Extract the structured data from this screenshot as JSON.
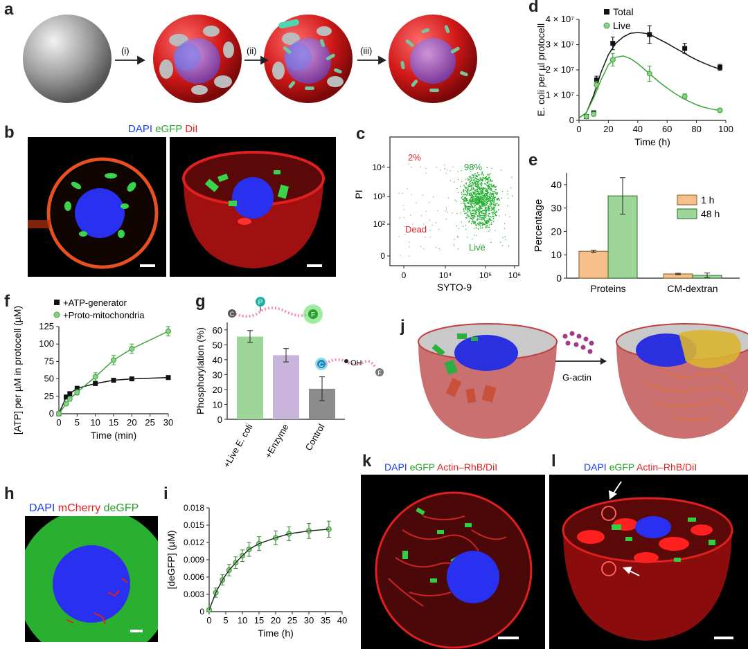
{
  "panels": {
    "a": "a",
    "b": "b",
    "c": "c",
    "d": "d",
    "e": "e",
    "f": "f",
    "g": "g",
    "h": "h",
    "i": "i",
    "j": "j",
    "k": "k",
    "l": "l"
  },
  "panel_a": {
    "steps": [
      "(i)",
      "(ii)",
      "(iii)"
    ]
  },
  "panel_b": {
    "stain_dapi": "DAPI",
    "stain_egfp": "eGFP",
    "stain_dil": "DiI"
  },
  "panel_h": {
    "stain_dapi": "DAPI",
    "stain_mcherry": "mCherry",
    "stain_degfp": "deGFP"
  },
  "panel_j": {
    "arrow_label": "G-actin"
  },
  "panel_k": {
    "stain_dapi": "DAPI",
    "stain_egfp": "eGFP",
    "stain_actin": "Actin–RhB/DiI"
  },
  "panel_l": {
    "stain_dapi": "DAPI",
    "stain_egfp": "eGFP",
    "stain_actin": "Actin–RhB/DiI"
  },
  "colors": {
    "black": "#111111",
    "green": "#3aa63a",
    "red": "#e02020",
    "blue": "#1a3cff",
    "orange": "#f5c08c",
    "lightgreen": "#9ed69a",
    "lavender": "#c9b4dc",
    "gray": "#8c8c8c",
    "lightg": "#8fcd8a"
  },
  "chart_data": [
    {
      "id": "d",
      "type": "line",
      "ylabel": "E. coli per µl protocell",
      "xlabel": "Time (h)",
      "xticks": [
        "0",
        "20",
        "40",
        "60",
        "80",
        "100"
      ],
      "yticks": [
        "0",
        "1 × 10⁷",
        "2 × 10⁷",
        "3 × 10⁷",
        "4 × 10⁷"
      ],
      "xlim": [
        0,
        100
      ],
      "ylim": [
        0,
        4.0
      ],
      "series": [
        {
          "name": "Total",
          "x": [
            5,
            10,
            12,
            23,
            48,
            72,
            96
          ],
          "y": [
            0.15,
            0.3,
            1.6,
            3.05,
            3.4,
            2.85,
            2.1
          ],
          "err": [
            0.05,
            0.08,
            0.15,
            0.25,
            0.35,
            0.2,
            0.12
          ]
        },
        {
          "name": "Live",
          "x": [
            5,
            10,
            12,
            23,
            48,
            72,
            96
          ],
          "y": [
            0.15,
            0.25,
            1.4,
            2.4,
            1.85,
            0.95,
            0.4
          ],
          "err": [
            0.05,
            0.08,
            0.15,
            0.25,
            0.3,
            0.1,
            0.08
          ]
        }
      ],
      "fits": [
        {
          "name": "Total",
          "x": [
            0,
            5,
            10,
            15,
            20,
            25,
            30,
            35,
            40,
            45,
            50,
            55,
            60,
            65,
            70,
            75,
            80,
            85,
            90,
            95
          ],
          "y": [
            0.1,
            0.3,
            1.0,
            1.9,
            2.6,
            3.05,
            3.3,
            3.45,
            3.48,
            3.45,
            3.35,
            3.2,
            3.05,
            2.88,
            2.72,
            2.55,
            2.4,
            2.27,
            2.15,
            2.05
          ]
        },
        {
          "name": "Live",
          "x": [
            0,
            5,
            10,
            15,
            20,
            25,
            30,
            35,
            40,
            45,
            50,
            55,
            60,
            65,
            70,
            75,
            80,
            85,
            90,
            95
          ],
          "y": [
            0.1,
            0.3,
            0.9,
            1.6,
            2.2,
            2.5,
            2.55,
            2.45,
            2.25,
            2.0,
            1.75,
            1.5,
            1.28,
            1.08,
            0.9,
            0.75,
            0.62,
            0.52,
            0.45,
            0.4
          ]
        }
      ]
    },
    {
      "id": "c",
      "type": "scatter",
      "ylabel": "PI",
      "xlabel": "SYTO-9",
      "xticks": [
        "0",
        "10⁴",
        "10⁵",
        "10⁶"
      ],
      "yticks": [
        "0",
        "10²",
        "10³",
        "10⁴"
      ],
      "annotations": {
        "dead_pct": "2%",
        "live_pct": "98%",
        "dead": "Dead",
        "live": "Live"
      }
    },
    {
      "id": "e",
      "type": "bar",
      "ylabel": "Percentage",
      "categories": [
        "Proteins",
        "CM-dextran"
      ],
      "yticks": [
        "0",
        "10",
        "20",
        "30",
        "40"
      ],
      "ylim": [
        0,
        45
      ],
      "series": [
        {
          "name": "1 h",
          "values": [
            11.5,
            1.8
          ],
          "err": [
            0.5,
            0.3
          ]
        },
        {
          "name": "48 h",
          "values": [
            35.2,
            1.2
          ],
          "err": [
            7.8,
            1.0
          ]
        }
      ]
    },
    {
      "id": "f",
      "type": "line",
      "ylabel": "[ATP] per µM in protocell (µM)",
      "xlabel": "Time (min)",
      "xticks": [
        "0",
        "5",
        "10",
        "15",
        "20",
        "25",
        "30"
      ],
      "yticks": [
        "0",
        "25",
        "50",
        "75",
        "100",
        "125"
      ],
      "xlim": [
        0,
        30
      ],
      "ylim": [
        0,
        130
      ],
      "series": [
        {
          "name": "+ATP-generator",
          "x": [
            0,
            2,
            3,
            5,
            10,
            15,
            20,
            30
          ],
          "y": [
            0,
            25,
            30,
            38,
            45,
            50,
            52,
            54
          ],
          "err": [
            1,
            2,
            2,
            2,
            2,
            2,
            2,
            2
          ]
        },
        {
          "name": "+Proto-mitochondria",
          "x": [
            0,
            2,
            3,
            5,
            10,
            15,
            20,
            30
          ],
          "y": [
            0,
            15,
            22,
            32,
            55,
            80,
            97,
            123
          ],
          "err": [
            1,
            3,
            3,
            4,
            6,
            7,
            7,
            7
          ]
        }
      ]
    },
    {
      "id": "g",
      "type": "bar",
      "ylabel": "Phosphorylation (%)",
      "categories": [
        "+Live E. coli",
        "+Enzyme",
        "Control"
      ],
      "yticks": [
        "0",
        "10",
        "20",
        "30",
        "40",
        "50",
        "60"
      ],
      "ylim": [
        0,
        65
      ],
      "values": [
        55.5,
        43,
        20.5
      ],
      "err": [
        4,
        4.5,
        8
      ],
      "colors": [
        "#9ed69a",
        "#c9b4dc",
        "#8c8c8c"
      ],
      "glyphs": {
        "c": "C",
        "p": "P",
        "f": "F",
        "oh": "OH"
      }
    },
    {
      "id": "i",
      "type": "line",
      "ylabel": "[deGFP] (µM)",
      "xlabel": "Time (h)",
      "xticks": [
        "0",
        "5",
        "10",
        "15",
        "20",
        "25",
        "30",
        "35",
        "40"
      ],
      "yticks": [
        "0",
        "0.003",
        "0.006",
        "0.009",
        "0.012",
        "0.015",
        "0.018"
      ],
      "xlim": [
        0,
        40
      ],
      "ylim": [
        0,
        0.018
      ],
      "series": [
        {
          "name": "deGFP",
          "x": [
            0,
            2,
            4,
            6,
            8,
            10,
            12,
            15,
            20,
            24,
            30,
            36
          ],
          "y": [
            0.0003,
            0.0033,
            0.0055,
            0.0072,
            0.0085,
            0.0097,
            0.0108,
            0.0118,
            0.0128,
            0.0135,
            0.014,
            0.0143
          ],
          "err": [
            0.0003,
            0.0008,
            0.0009,
            0.001,
            0.001,
            0.001,
            0.0012,
            0.0012,
            0.0012,
            0.0012,
            0.0013,
            0.0014
          ]
        }
      ]
    }
  ]
}
